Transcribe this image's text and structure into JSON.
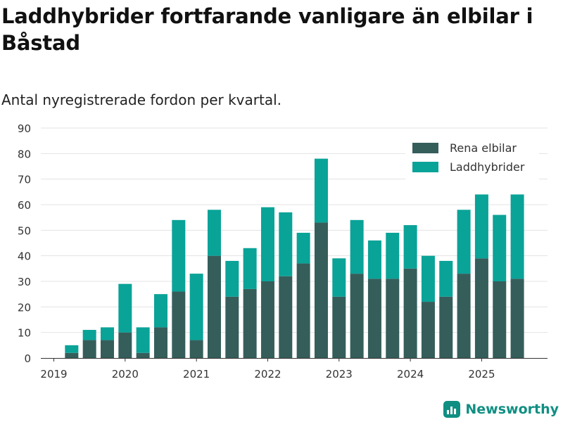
{
  "chart_data": {
    "type": "bar",
    "stacked": true,
    "title": "Laddhybrider fortfarande vanligare än elbilar i Båstad",
    "subtitle": "Antal nyregistrerade fordon per kvartal.",
    "ylim": [
      0,
      90
    ],
    "yticks": [
      0,
      10,
      20,
      30,
      40,
      50,
      60,
      70,
      80,
      90
    ],
    "xtick_labels": [
      "2019",
      "2020",
      "2021",
      "2022",
      "2023",
      "2024",
      "2025"
    ],
    "categories": [
      "2019 Q1",
      "2019 Q2",
      "2019 Q3",
      "2019 Q4",
      "2020 Q1",
      "2020 Q2",
      "2020 Q3",
      "2020 Q4",
      "2021 Q1",
      "2021 Q2",
      "2021 Q3",
      "2021 Q4",
      "2022 Q1",
      "2022 Q2",
      "2022 Q3",
      "2022 Q4",
      "2023 Q1",
      "2023 Q2",
      "2023 Q3",
      "2023 Q4",
      "2024 Q1",
      "2024 Q2",
      "2024 Q3",
      "2024 Q4",
      "2025 Q1",
      "2025 Q2",
      "2025 Q3"
    ],
    "legend_position": "top-right",
    "grid": true,
    "series": [
      {
        "name": "Rena elbilar",
        "color": "#355e5b",
        "values": [
          0,
          2,
          7,
          7,
          10,
          2,
          12,
          26,
          7,
          40,
          24,
          27,
          30,
          32,
          37,
          53,
          24,
          33,
          31,
          31,
          35,
          22,
          24,
          33,
          39,
          30,
          31
        ]
      },
      {
        "name": "Laddhybrider",
        "color": "#0aa398",
        "values": [
          0,
          3,
          4,
          5,
          19,
          10,
          13,
          28,
          26,
          18,
          14,
          16,
          29,
          25,
          12,
          25,
          15,
          21,
          15,
          18,
          17,
          18,
          14,
          25,
          25,
          26,
          33
        ]
      }
    ]
  },
  "brand": {
    "name": "Newsworthy"
  }
}
